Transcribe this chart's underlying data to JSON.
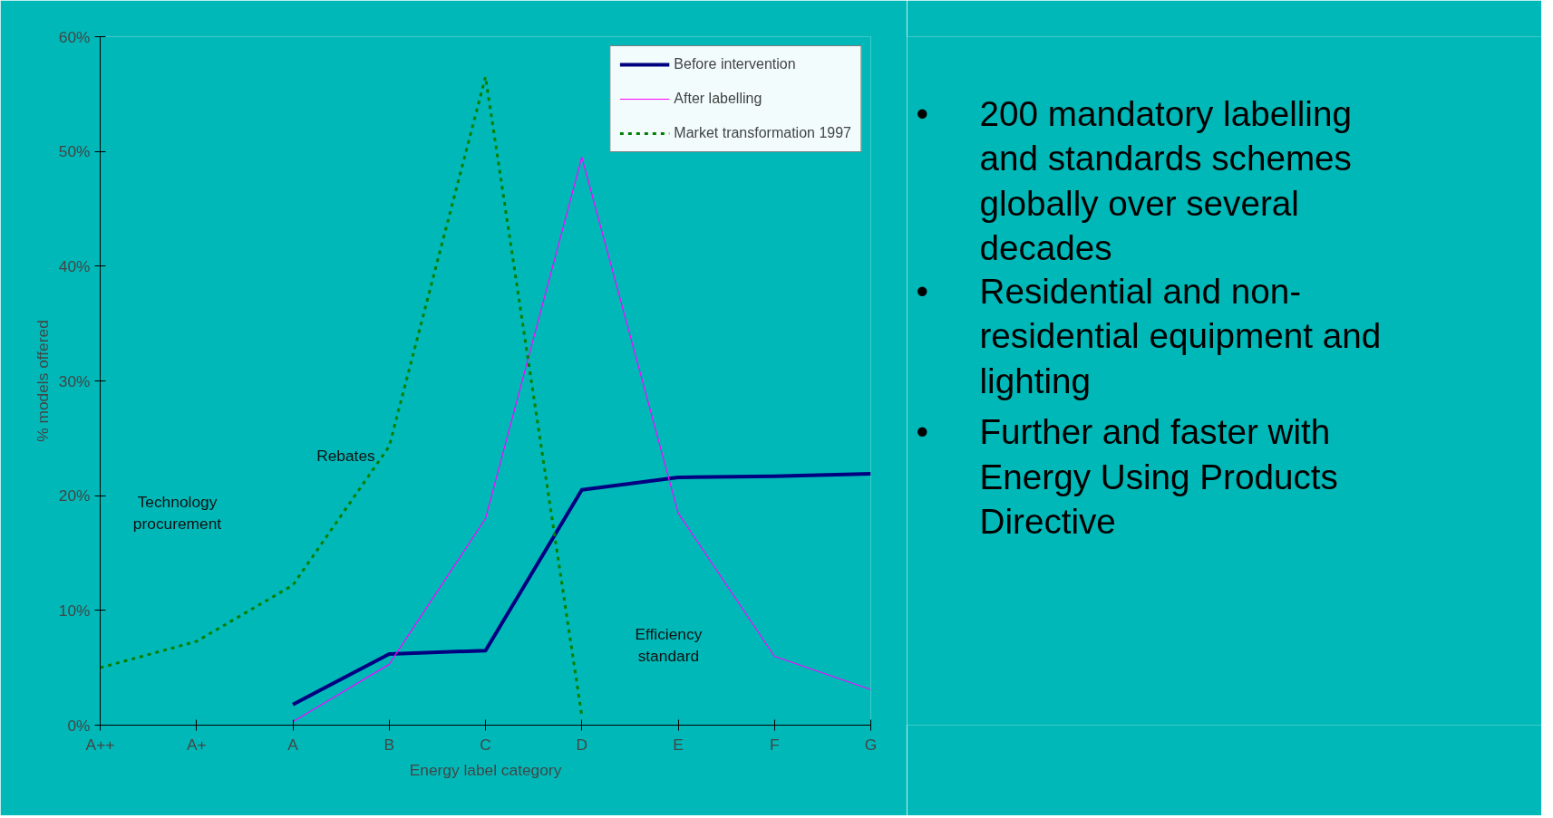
{
  "chart_data": [
    {
      "type": "line",
      "xlabel": "Energy label category",
      "ylabel": "% models offered",
      "categories": [
        "A++",
        "A+",
        "A",
        "B",
        "C",
        "D",
        "E",
        "F",
        "G"
      ],
      "ylim": [
        0,
        60
      ],
      "yticks": [
        {
          "value": 0,
          "label": "0%"
        },
        {
          "value": 10,
          "label": "10%"
        },
        {
          "value": 20,
          "label": "20%"
        },
        {
          "value": 30,
          "label": "30%"
        },
        {
          "value": 40,
          "label": "40%"
        },
        {
          "value": 50,
          "label": "50%"
        },
        {
          "value": 60,
          "label": "60%"
        }
      ],
      "series": [
        {
          "name": "Before intervention",
          "color": "#000080",
          "line_style": "solid",
          "values": [
            null,
            null,
            1.8,
            6.2,
            6.5,
            20.5,
            21.6,
            21.7,
            21.9
          ]
        },
        {
          "name": "After labelling",
          "color": "#ff00ff",
          "line_style": "solid",
          "values": [
            null,
            null,
            0.3,
            5.3,
            18,
            49.5,
            18.5,
            6,
            3.1
          ]
        },
        {
          "name": "Market transformation 1997",
          "color": "#008000",
          "line_style": "dashed",
          "values": [
            5,
            7.3,
            12.2,
            24.3,
            56.5,
            0.8,
            null,
            null,
            null
          ]
        }
      ],
      "legend": "top right",
      "grid": false,
      "marker": "none",
      "annotations": [
        "Technology procurement",
        "Rebates",
        "Efficiency standard"
      ]
    },
    {
      "type": "other",
      "annotations": [
        "• 200 mandatory labelling and standards schemes globally over several decades",
        "• Residential and non-residential equipment and lighting",
        "• Further and faster with Energy Using Products Directive"
      ]
    }
  ]
}
